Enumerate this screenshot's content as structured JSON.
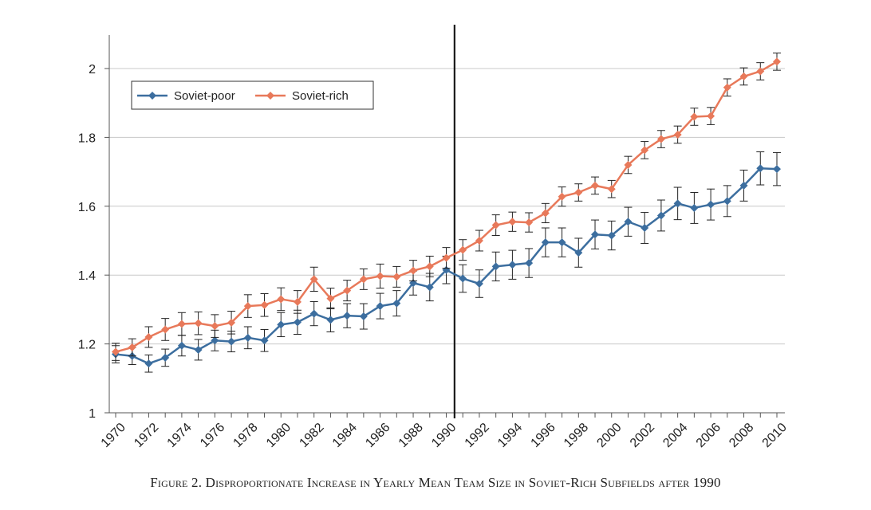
{
  "chart_data": {
    "type": "line",
    "caption": "Figure 2. Disproportionate Increase in Yearly Mean Team Size in Soviet-Rich Subfields after 1990",
    "x": [
      1970,
      1971,
      1972,
      1973,
      1974,
      1975,
      1976,
      1977,
      1978,
      1979,
      1980,
      1981,
      1982,
      1983,
      1984,
      1985,
      1986,
      1987,
      1988,
      1989,
      1990,
      1991,
      1992,
      1993,
      1994,
      1995,
      1996,
      1997,
      1998,
      1999,
      2000,
      2001,
      2002,
      2003,
      2004,
      2005,
      2006,
      2007,
      2008,
      2009,
      2010
    ],
    "x_tick_labels": [
      "1970",
      "1972",
      "1974",
      "1976",
      "1978",
      "1980",
      "1982",
      "1984",
      "1986",
      "1988",
      "1990",
      "1992",
      "1994",
      "1996",
      "1998",
      "2000",
      "2002",
      "2004",
      "2006",
      "2008",
      "2010"
    ],
    "y_tick_labels": [
      "1",
      "1.2",
      "1.4",
      "1.6",
      "1.8",
      "2"
    ],
    "ylim": [
      1,
      2.1
    ],
    "grid": true,
    "legend_position": "top-left",
    "vertical_line_x": 1990.5,
    "series": [
      {
        "name": "Soviet-poor",
        "color": "#3c6e9f",
        "marker": "diamond",
        "values": [
          1.17,
          1.165,
          1.143,
          1.16,
          1.195,
          1.183,
          1.21,
          1.207,
          1.218,
          1.21,
          1.256,
          1.263,
          1.288,
          1.27,
          1.282,
          1.28,
          1.31,
          1.318,
          1.377,
          1.365,
          1.415,
          1.39,
          1.375,
          1.425,
          1.43,
          1.435,
          1.495,
          1.495,
          1.465,
          1.518,
          1.515,
          1.555,
          1.537,
          1.573,
          1.608,
          1.595,
          1.605,
          1.615,
          1.66,
          1.71,
          1.708
        ],
        "error": [
          0.025,
          0.025,
          0.025,
          0.025,
          0.03,
          0.03,
          0.03,
          0.03,
          0.032,
          0.032,
          0.035,
          0.035,
          0.035,
          0.035,
          0.035,
          0.037,
          0.037,
          0.037,
          0.035,
          0.04,
          0.04,
          0.04,
          0.04,
          0.042,
          0.042,
          0.042,
          0.042,
          0.042,
          0.042,
          0.042,
          0.042,
          0.042,
          0.045,
          0.045,
          0.047,
          0.045,
          0.045,
          0.045,
          0.045,
          0.048,
          0.048
        ]
      },
      {
        "name": "Soviet-rich",
        "color": "#e8795a",
        "marker": "diamond",
        "values": [
          1.177,
          1.19,
          1.22,
          1.242,
          1.258,
          1.26,
          1.252,
          1.262,
          1.31,
          1.313,
          1.33,
          1.322,
          1.388,
          1.332,
          1.355,
          1.388,
          1.397,
          1.395,
          1.413,
          1.425,
          1.45,
          1.473,
          1.5,
          1.545,
          1.555,
          1.553,
          1.58,
          1.628,
          1.64,
          1.66,
          1.65,
          1.72,
          1.763,
          1.795,
          1.808,
          1.86,
          1.862,
          1.945,
          1.977,
          1.992,
          2.02
        ],
        "error": [
          0.025,
          0.025,
          0.03,
          0.032,
          0.033,
          0.033,
          0.033,
          0.033,
          0.033,
          0.033,
          0.033,
          0.033,
          0.035,
          0.03,
          0.03,
          0.03,
          0.035,
          0.03,
          0.03,
          0.03,
          0.03,
          0.03,
          0.03,
          0.03,
          0.028,
          0.028,
          0.028,
          0.028,
          0.025,
          0.025,
          0.025,
          0.025,
          0.025,
          0.025,
          0.025,
          0.025,
          0.025,
          0.025,
          0.025,
          0.025,
          0.025
        ]
      }
    ]
  }
}
